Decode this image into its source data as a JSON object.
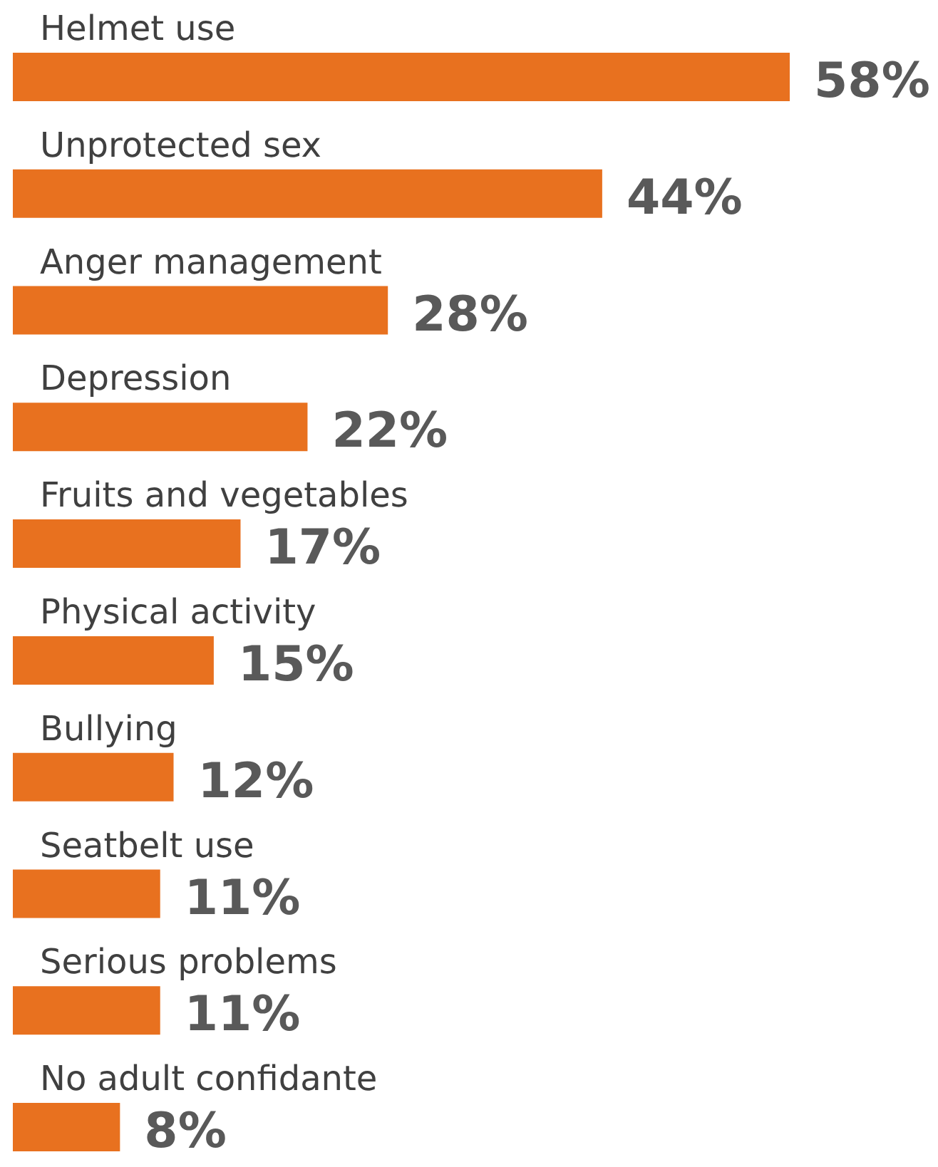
{
  "chart_data": {
    "type": "bar",
    "orientation": "horizontal",
    "categories": [
      "Helmet use",
      "Unprotected sex",
      "Anger management",
      "Depression",
      "Fruits and vegetables",
      "Physical activity",
      "Bullying",
      "Seatbelt use",
      "Serious problems",
      "No adult confidante"
    ],
    "values": [
      58,
      44,
      28,
      22,
      17,
      15,
      12,
      11,
      11,
      8
    ],
    "value_labels": [
      "58%",
      "44%",
      "28%",
      "22%",
      "17%",
      "15%",
      "12%",
      "11%",
      "11%",
      "8%"
    ],
    "color": "#e8711f"
  }
}
